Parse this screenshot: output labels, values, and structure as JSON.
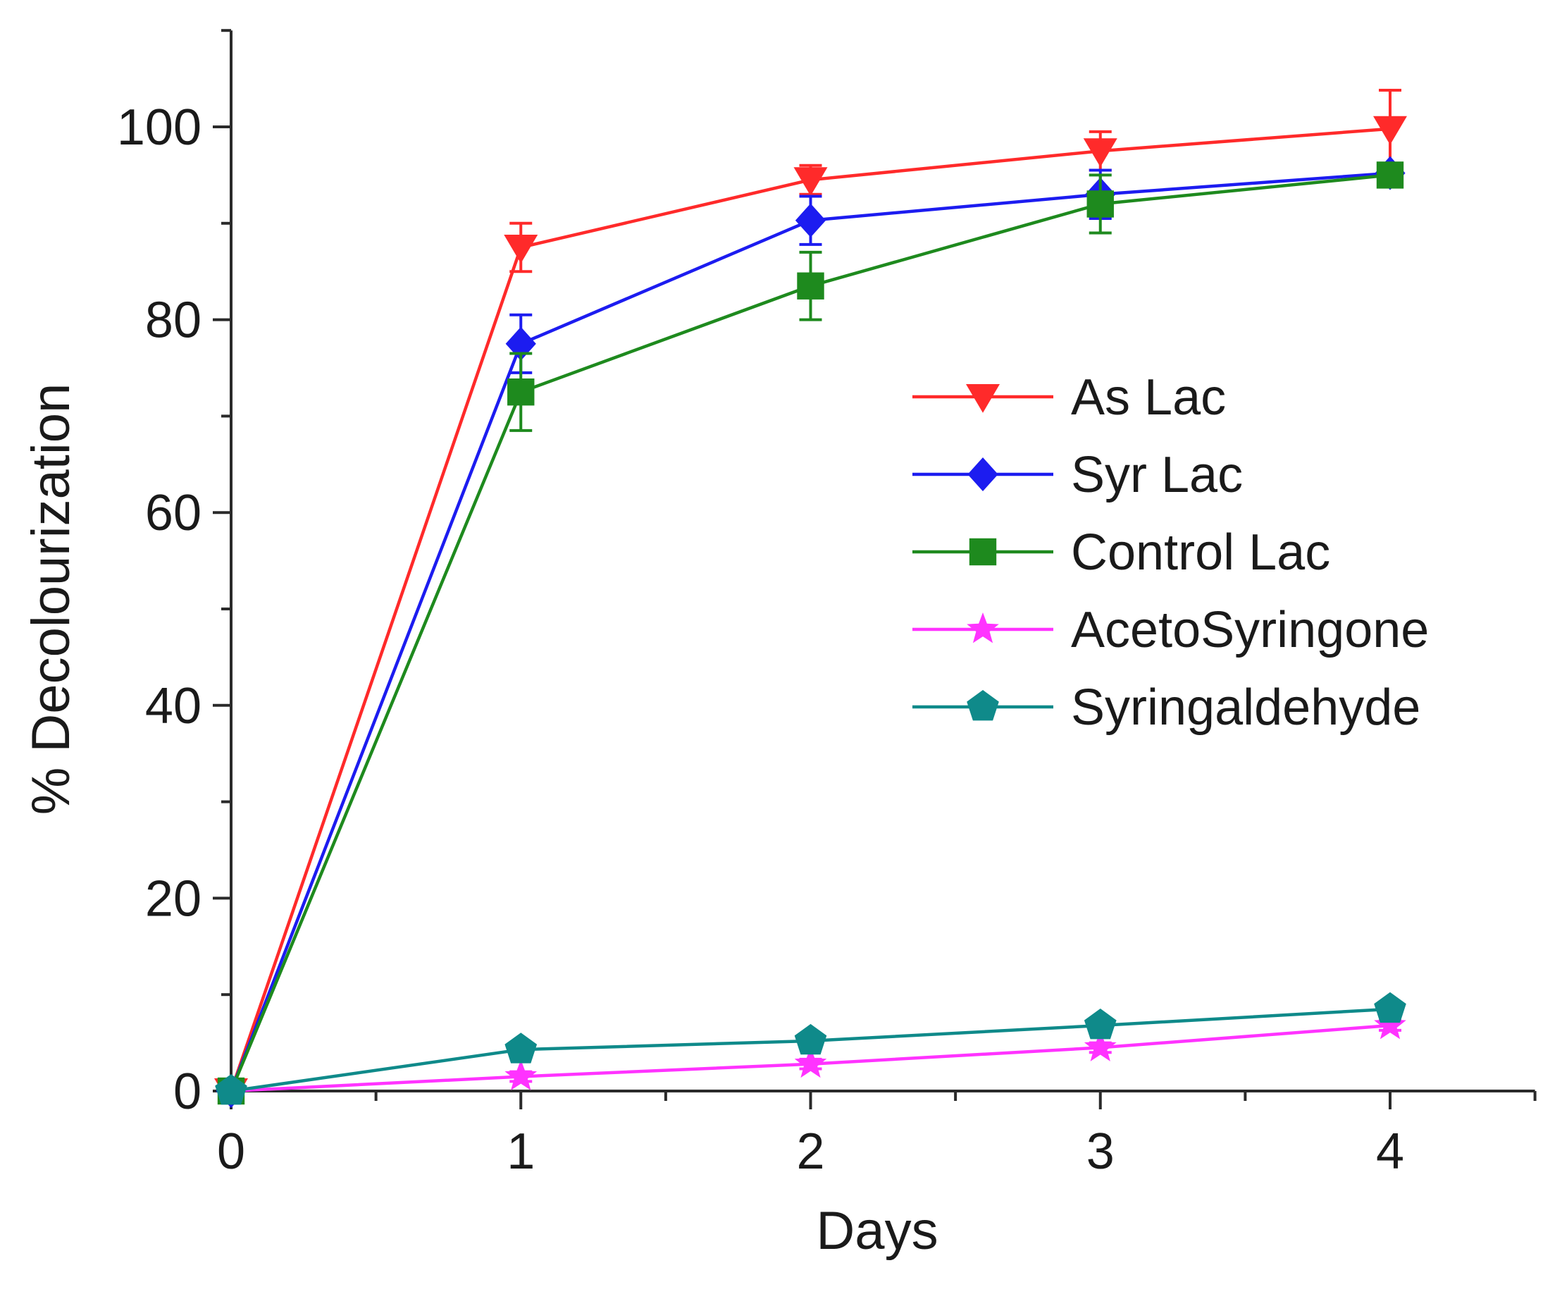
{
  "chart_data": {
    "type": "line",
    "title": "",
    "xlabel": "Days",
    "ylabel": "% Decolourization",
    "xlim": [
      0,
      4.5
    ],
    "ylim": [
      0,
      110
    ],
    "xticks": [
      0,
      1,
      2,
      3,
      4
    ],
    "xtick_labels": [
      "0",
      "1",
      "2",
      "3",
      "4"
    ],
    "yticks": [
      0,
      20,
      40,
      60,
      80,
      100
    ],
    "ytick_labels": [
      "0",
      "20",
      "40",
      "60",
      "80",
      "100"
    ],
    "legend_position": "center-right",
    "x": [
      0,
      1,
      2,
      3,
      4
    ],
    "series": [
      {
        "name": "As Lac",
        "color": "#ff2a2a",
        "marker": "triangle-down",
        "values": [
          0,
          87.5,
          94.5,
          97.5,
          99.8
        ],
        "errors": [
          0,
          2.5,
          1.5,
          2.0,
          4.0
        ]
      },
      {
        "name": "Syr Lac",
        "color": "#1c1cf0",
        "marker": "diamond",
        "values": [
          0,
          77.5,
          90.3,
          93.0,
          95.2
        ],
        "errors": [
          0,
          3.0,
          2.5,
          2.5,
          1.0
        ]
      },
      {
        "name": "Control Lac",
        "color": "#1e8a1e",
        "marker": "square",
        "values": [
          0,
          72.5,
          83.5,
          92.0,
          95.0
        ],
        "errors": [
          0,
          4.0,
          3.5,
          3.0,
          1.0
        ]
      },
      {
        "name": "AcetoSyringone",
        "color": "#ff33ff",
        "marker": "star",
        "values": [
          0,
          1.5,
          2.8,
          4.5,
          6.8
        ],
        "errors": [
          0,
          0.5,
          0.5,
          0.5,
          0.5
        ]
      },
      {
        "name": "Syringaldehyde",
        "color": "#0f8a8a",
        "marker": "pentagon",
        "values": [
          0,
          4.3,
          5.2,
          6.8,
          8.5
        ],
        "errors": [
          0,
          0.5,
          0.5,
          0.5,
          0.5
        ]
      }
    ]
  }
}
